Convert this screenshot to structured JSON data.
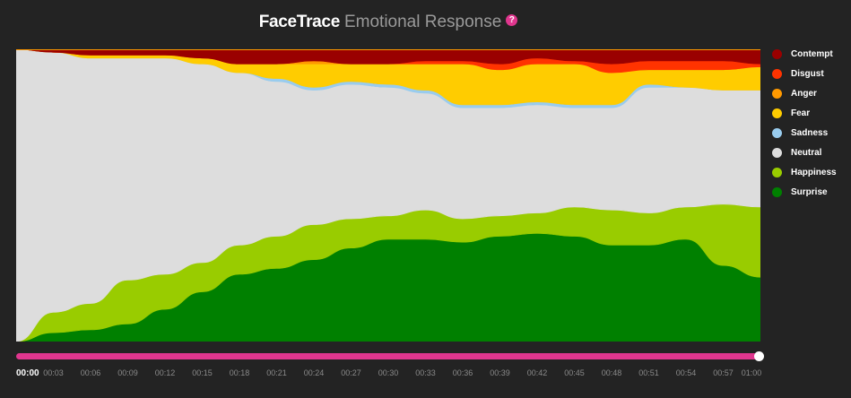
{
  "header": {
    "brand": "FaceTrace",
    "subtitle": "Emotional Response",
    "help": "?"
  },
  "legend": [
    {
      "name": "Contempt",
      "color": "#9a0000"
    },
    {
      "name": "Disgust",
      "color": "#ff3300"
    },
    {
      "name": "Anger",
      "color": "#ff9900"
    },
    {
      "name": "Fear",
      "color": "#ffcc00"
    },
    {
      "name": "Sadness",
      "color": "#99ccee"
    },
    {
      "name": "Neutral",
      "color": "#dddddd"
    },
    {
      "name": "Happiness",
      "color": "#99cc00"
    },
    {
      "name": "Surprise",
      "color": "#008000"
    }
  ],
  "timeline": {
    "current": "00:00",
    "progress": 1.0
  },
  "chart_data": {
    "type": "area",
    "stacking": "percent",
    "x": [
      0,
      3,
      6,
      9,
      12,
      15,
      18,
      21,
      24,
      27,
      30,
      33,
      36,
      39,
      42,
      45,
      48,
      51,
      54,
      57,
      60
    ],
    "x_tick_labels": [
      "00:00",
      "00:03",
      "00:06",
      "00:09",
      "00:12",
      "00:15",
      "00:18",
      "00:21",
      "00:24",
      "00:27",
      "00:30",
      "00:33",
      "00:36",
      "00:39",
      "00:42",
      "00:45",
      "00:48",
      "00:51",
      "00:54",
      "00:57",
      "01:00"
    ],
    "ylim": [
      0,
      100
    ],
    "grid": false,
    "legend_position": "right",
    "series": [
      {
        "name": "Surprise",
        "color": "#008000",
        "values": [
          0,
          3,
          4,
          6,
          11,
          17,
          23,
          25,
          28,
          32,
          35,
          35,
          34,
          36,
          37,
          36,
          33,
          33,
          35,
          26,
          22
        ]
      },
      {
        "name": "Happiness",
        "color": "#99cc00",
        "values": [
          0,
          7,
          9,
          15,
          12,
          10,
          10,
          11,
          12,
          10,
          8,
          10,
          8,
          7,
          7,
          10,
          12,
          11,
          11,
          21,
          24
        ]
      },
      {
        "name": "Neutral",
        "color": "#dddddd",
        "values": [
          100,
          89,
          84,
          76,
          74,
          68,
          59,
          53,
          46,
          46,
          44,
          40,
          38,
          37,
          37,
          34,
          35,
          43,
          41,
          39,
          40
        ]
      },
      {
        "name": "Sadness",
        "color": "#99ccee",
        "values": [
          0,
          0,
          0,
          0,
          0,
          0,
          0,
          1,
          1,
          1,
          1,
          1,
          1,
          1,
          1,
          1,
          1,
          1,
          0,
          0,
          0
        ]
      },
      {
        "name": "Fear",
        "color": "#ffcc00",
        "values": [
          0,
          0,
          1,
          1,
          1,
          2,
          3,
          5,
          8,
          6,
          7,
          9,
          14,
          12,
          13,
          14,
          11,
          5,
          6,
          7,
          8
        ]
      },
      {
        "name": "Anger",
        "color": "#ff9900",
        "values": [
          0,
          0,
          0,
          0,
          0,
          0,
          0,
          0,
          1,
          0,
          0,
          0,
          0,
          0,
          0,
          0,
          0,
          0,
          0,
          0,
          0
        ]
      },
      {
        "name": "Disgust",
        "color": "#ff3300",
        "values": [
          0,
          0,
          0,
          0,
          0,
          0,
          0,
          0,
          0,
          0,
          0,
          1,
          1,
          2,
          2,
          1,
          3,
          3,
          3,
          3,
          1
        ]
      },
      {
        "name": "Contempt",
        "color": "#9a0000",
        "values": [
          0,
          1,
          2,
          2,
          2,
          3,
          5,
          5,
          4,
          5,
          5,
          4,
          4,
          5,
          3,
          4,
          5,
          4,
          4,
          4,
          5
        ]
      }
    ]
  }
}
